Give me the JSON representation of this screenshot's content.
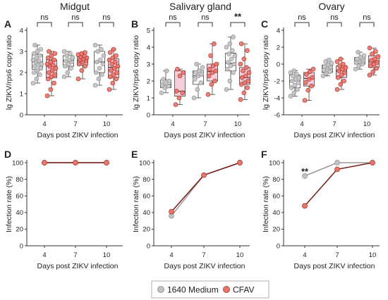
{
  "colors": {
    "medium_fill": "#c2c2c2",
    "medium_stroke": "#8c8c8c",
    "cfav_fill": "#e8766c",
    "cfav_stroke": "#a82a20",
    "cfav_box_fill": "#f5c6d5",
    "line_medium": "#9a9a9a",
    "line_cfav": "#7a1a14",
    "axis": "#333333"
  },
  "legend": {
    "items": [
      {
        "label": "1640 Medium",
        "color": "#c2c2c2",
        "stroke": "#8c8c8c"
      },
      {
        "label": "CFAV",
        "color": "#e8766c",
        "stroke": "#a82a20"
      }
    ]
  },
  "chart_data": [
    {
      "id": "A",
      "letter": "A",
      "title": "Midgut",
      "type": "box-scatter",
      "ylabel": "lg ZIKV/rps6 copy ratio",
      "xlabel": "Days post ZIKV infection",
      "categories": [
        "4",
        "7",
        "10"
      ],
      "ylim": [
        0,
        4
      ],
      "yticks": [
        0,
        1,
        2,
        3,
        4
      ],
      "significance": [
        "ns",
        "ns",
        "ns"
      ],
      "series": [
        {
          "name": "1640 Medium",
          "stats": [
            {
              "q1": 2.15,
              "med": 2.5,
              "q3": 2.85,
              "min": 1.5,
              "max": 3.3,
              "points": [
                1.5,
                1.7,
                1.9,
                2.0,
                2.1,
                2.2,
                2.3,
                2.35,
                2.4,
                2.5,
                2.55,
                2.6,
                2.7,
                2.8,
                2.9,
                3.0,
                3.1,
                3.3
              ]
            },
            {
              "q1": 2.3,
              "med": 2.55,
              "q3": 2.8,
              "min": 1.8,
              "max": 3.0,
              "points": [
                1.8,
                2.0,
                2.2,
                2.3,
                2.4,
                2.5,
                2.55,
                2.6,
                2.7,
                2.8,
                2.9,
                3.0
              ]
            },
            {
              "q1": 2.0,
              "med": 2.5,
              "q3": 3.0,
              "min": 1.4,
              "max": 3.3,
              "points": [
                1.4,
                1.7,
                1.9,
                2.0,
                2.2,
                2.4,
                2.5,
                2.6,
                2.8,
                3.0,
                3.1,
                3.3
              ]
            }
          ]
        },
        {
          "name": "CFAV",
          "stats": [
            {
              "q1": 1.75,
              "med": 2.3,
              "q3": 2.6,
              "min": 0.9,
              "max": 3.0,
              "points": [
                0.9,
                1.2,
                1.5,
                1.7,
                1.8,
                1.9,
                2.0,
                2.1,
                2.2,
                2.3,
                2.35,
                2.4,
                2.5,
                2.6,
                2.7,
                2.8,
                2.9,
                3.0
              ]
            },
            {
              "q1": 2.35,
              "med": 2.55,
              "q3": 2.75,
              "min": 1.7,
              "max": 2.95,
              "points": [
                1.7,
                2.1,
                2.3,
                2.4,
                2.5,
                2.55,
                2.6,
                2.65,
                2.7,
                2.75,
                2.8,
                2.85,
                2.9,
                2.95
              ]
            },
            {
              "q1": 1.75,
              "med": 2.25,
              "q3": 2.65,
              "min": 1.2,
              "max": 3.1,
              "points": [
                1.2,
                1.5,
                1.7,
                1.8,
                1.9,
                2.0,
                2.1,
                2.2,
                2.3,
                2.4,
                2.5,
                2.6,
                2.7,
                2.8,
                2.95,
                3.1
              ]
            }
          ]
        }
      ]
    },
    {
      "id": "B",
      "letter": "B",
      "title": "Salivary gland",
      "type": "box-scatter",
      "ylabel": "lg ZIKV/rps6 copy ratio",
      "xlabel": "Days post ZIKV infection",
      "categories": [
        "4",
        "7",
        "10"
      ],
      "ylim": [
        0,
        5
      ],
      "yticks": [
        0,
        1,
        2,
        3,
        4,
        5
      ],
      "significance": [
        "ns",
        "ns",
        "**"
      ],
      "series": [
        {
          "name": "1640 Medium",
          "stats": [
            {
              "q1": 1.6,
              "med": 1.8,
              "q3": 2.05,
              "min": 1.3,
              "max": 2.6,
              "points": [
                1.3,
                1.6,
                1.7,
                1.8,
                1.85,
                2.0,
                2.1,
                2.6
              ]
            },
            {
              "q1": 1.8,
              "med": 2.3,
              "q3": 2.6,
              "min": 1.0,
              "max": 3.0,
              "points": [
                1.0,
                1.5,
                1.9,
                2.1,
                2.3,
                2.4,
                2.5,
                2.6,
                2.8,
                3.0
              ]
            },
            {
              "q1": 2.6,
              "med": 3.05,
              "q3": 3.65,
              "min": 1.5,
              "max": 4.6,
              "points": [
                1.5,
                2.0,
                2.5,
                2.7,
                2.9,
                3.0,
                3.1,
                3.3,
                3.5,
                3.6,
                3.8,
                4.0,
                4.2,
                4.6
              ]
            }
          ]
        },
        {
          "name": "CFAV",
          "stats": [
            {
              "q1": 1.1,
              "med": 1.4,
              "q3": 2.6,
              "min": 0.6,
              "max": 2.7,
              "points": [
                0.6,
                1.0,
                1.3,
                1.4,
                2.3,
                2.5,
                2.7
              ]
            },
            {
              "q1": 2.0,
              "med": 2.55,
              "q3": 3.0,
              "min": 1.2,
              "max": 4.2,
              "points": [
                1.2,
                1.8,
                2.0,
                2.3,
                2.5,
                2.6,
                2.7,
                2.9,
                3.0,
                3.5,
                4.2
              ]
            },
            {
              "q1": 1.8,
              "med": 2.2,
              "q3": 2.8,
              "min": 0.9,
              "max": 4.2,
              "points": [
                0.9,
                1.3,
                1.6,
                1.8,
                1.9,
                2.0,
                2.2,
                2.3,
                2.5,
                2.6,
                2.8,
                3.0,
                3.3,
                3.8,
                4.2
              ]
            }
          ]
        }
      ]
    },
    {
      "id": "C",
      "letter": "C",
      "title": "Ovary",
      "type": "box-scatter",
      "ylabel": "lg ZIKV/rps6 copy ratio",
      "xlabel": "Days post ZIKV infection",
      "categories": [
        "4",
        "7",
        "10"
      ],
      "ylim": [
        -6,
        4
      ],
      "yticks": [
        -6,
        -4,
        -2,
        0,
        2,
        4
      ],
      "significance": [
        "ns",
        "ns",
        "ns"
      ],
      "series": [
        {
          "name": "1640 Medium",
          "stats": [
            {
              "q1": -2.8,
              "med": -2.0,
              "q3": -1.3,
              "min": -3.8,
              "max": -0.8,
              "points": [
                -3.8,
                -3.4,
                -3.0,
                -2.8,
                -2.5,
                -2.2,
                -2.0,
                -1.8,
                -1.6,
                -1.4,
                -1.2,
                -1.0,
                -0.8
              ]
            },
            {
              "q1": -1.0,
              "med": -0.5,
              "q3": -0.1,
              "min": -1.4,
              "max": 0.5,
              "points": [
                -1.4,
                -1.1,
                -0.9,
                -0.7,
                -0.5,
                -0.4,
                -0.3,
                -0.1,
                0.1,
                0.3,
                0.5
              ]
            },
            {
              "q1": 0.0,
              "med": 0.35,
              "q3": 0.8,
              "min": -0.6,
              "max": 1.4,
              "points": [
                -0.6,
                -0.2,
                0.0,
                0.2,
                0.3,
                0.4,
                0.6,
                0.8,
                1.0,
                1.4
              ]
            }
          ]
        },
        {
          "name": "CFAV",
          "stats": [
            {
              "q1": -2.6,
              "med": -1.7,
              "q3": -1.0,
              "min": -4.3,
              "max": -0.6,
              "points": [
                -4.3,
                -3.1,
                -2.6,
                -2.2,
                -1.8,
                -1.6,
                -1.2,
                -0.9,
                -0.6
              ]
            },
            {
              "q1": -1.6,
              "med": -0.8,
              "q3": -0.2,
              "min": -3.0,
              "max": 0.6,
              "points": [
                -3.0,
                -2.4,
                -2.0,
                -1.6,
                -1.3,
                -1.0,
                -0.8,
                -0.6,
                -0.4,
                -0.2,
                0.0,
                0.3,
                0.6
              ]
            },
            {
              "q1": -0.4,
              "med": 0.25,
              "q3": 1.0,
              "min": -1.3,
              "max": 1.9,
              "points": [
                -1.3,
                -0.9,
                -0.5,
                -0.2,
                0.0,
                0.2,
                0.4,
                0.6,
                0.9,
                1.2,
                1.5,
                1.9
              ]
            }
          ]
        }
      ]
    },
    {
      "id": "D",
      "letter": "D",
      "type": "line",
      "ylabel": "Infection rate (%)",
      "xlabel": "Days post ZIKV infection",
      "categories": [
        "4",
        "7",
        "10"
      ],
      "ylim": [
        0,
        100
      ],
      "yticks": [
        0,
        20,
        40,
        60,
        80,
        100
      ],
      "annotation": "",
      "series": [
        {
          "name": "1640 Medium",
          "values": [
            100,
            100,
            100
          ]
        },
        {
          "name": "CFAV",
          "values": [
            100,
            100,
            100
          ]
        }
      ]
    },
    {
      "id": "E",
      "letter": "E",
      "type": "line",
      "ylabel": "Infection rate (%)",
      "xlabel": "Days post ZIKV infection",
      "categories": [
        "4",
        "7",
        "10"
      ],
      "ylim": [
        0,
        100
      ],
      "yticks": [
        0,
        20,
        40,
        60,
        80,
        100
      ],
      "annotation": "",
      "series": [
        {
          "name": "1640 Medium",
          "values": [
            36,
            85,
            100
          ]
        },
        {
          "name": "CFAV",
          "values": [
            41,
            85,
            100
          ]
        }
      ]
    },
    {
      "id": "F",
      "letter": "F",
      "type": "line",
      "ylabel": "Infection rate (%)",
      "xlabel": "Days post ZIKV infection",
      "categories": [
        "4",
        "7",
        "10"
      ],
      "ylim": [
        0,
        100
      ],
      "yticks": [
        0,
        20,
        40,
        60,
        80,
        100
      ],
      "annotation": "**",
      "series": [
        {
          "name": "1640 Medium",
          "values": [
            84,
            100,
            100
          ]
        },
        {
          "name": "CFAV",
          "values": [
            48,
            92,
            100
          ]
        }
      ]
    }
  ]
}
